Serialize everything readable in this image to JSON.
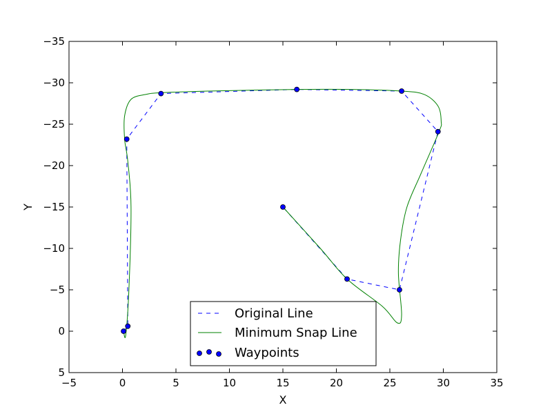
{
  "chart_data": {
    "type": "line",
    "xlabel": "X",
    "ylabel": "Y",
    "xlim": [
      -5,
      35
    ],
    "ylim": [
      5,
      -35
    ],
    "y_inverted": true,
    "grid": false,
    "xticks": [
      -5,
      0,
      5,
      10,
      15,
      20,
      25,
      30,
      35
    ],
    "yticks": [
      5,
      0,
      -5,
      -10,
      -15,
      -20,
      -25,
      -30,
      -35
    ],
    "legend": {
      "placement": "lower center"
    },
    "series": [
      {
        "name": "Original Line",
        "style": "dashed",
        "color": "#0000ff",
        "x": [
          0.1,
          0.5,
          0.4,
          3.6,
          16.3,
          26.1,
          29.5,
          25.9,
          21.0,
          15.0
        ],
        "y": [
          0.0,
          -0.6,
          -23.2,
          -28.7,
          -29.2,
          -29.0,
          -24.1,
          -5.0,
          -6.3,
          -15.0
        ]
      },
      {
        "name": "Minimum Snap Line",
        "style": "solid",
        "color": "#008000",
        "x": [
          0.1,
          0.3,
          0.6,
          0.8,
          0.5,
          0.2,
          0.2,
          0.8,
          2.2,
          3.6,
          8.0,
          16.3,
          21.5,
          26.1,
          28.2,
          29.5,
          29.8,
          29.6,
          27.9,
          26.6,
          26.0,
          25.8,
          26.1,
          25.7,
          24.3,
          21.0,
          18.5,
          15.0
        ],
        "y": [
          0.0,
          0.5,
          -5.0,
          -15.0,
          -20.5,
          -23.2,
          -26.0,
          -28.0,
          -28.6,
          -28.8,
          -29.0,
          -29.2,
          -29.2,
          -29.0,
          -28.6,
          -27.2,
          -25.3,
          -24.1,
          -19.0,
          -15.0,
          -11.0,
          -7.0,
          -2.0,
          -1.0,
          -3.0,
          -6.3,
          -10.0,
          -15.0
        ]
      },
      {
        "name": "Waypoints",
        "style": "scatter",
        "color": "#0000ff",
        "x": [
          0.1,
          0.5,
          0.4,
          3.6,
          16.3,
          26.1,
          29.5,
          25.9,
          21.0,
          15.0
        ],
        "y": [
          0.0,
          -0.6,
          -23.2,
          -28.7,
          -29.2,
          -29.0,
          -24.1,
          -5.0,
          -6.3,
          -15.0
        ]
      }
    ]
  }
}
